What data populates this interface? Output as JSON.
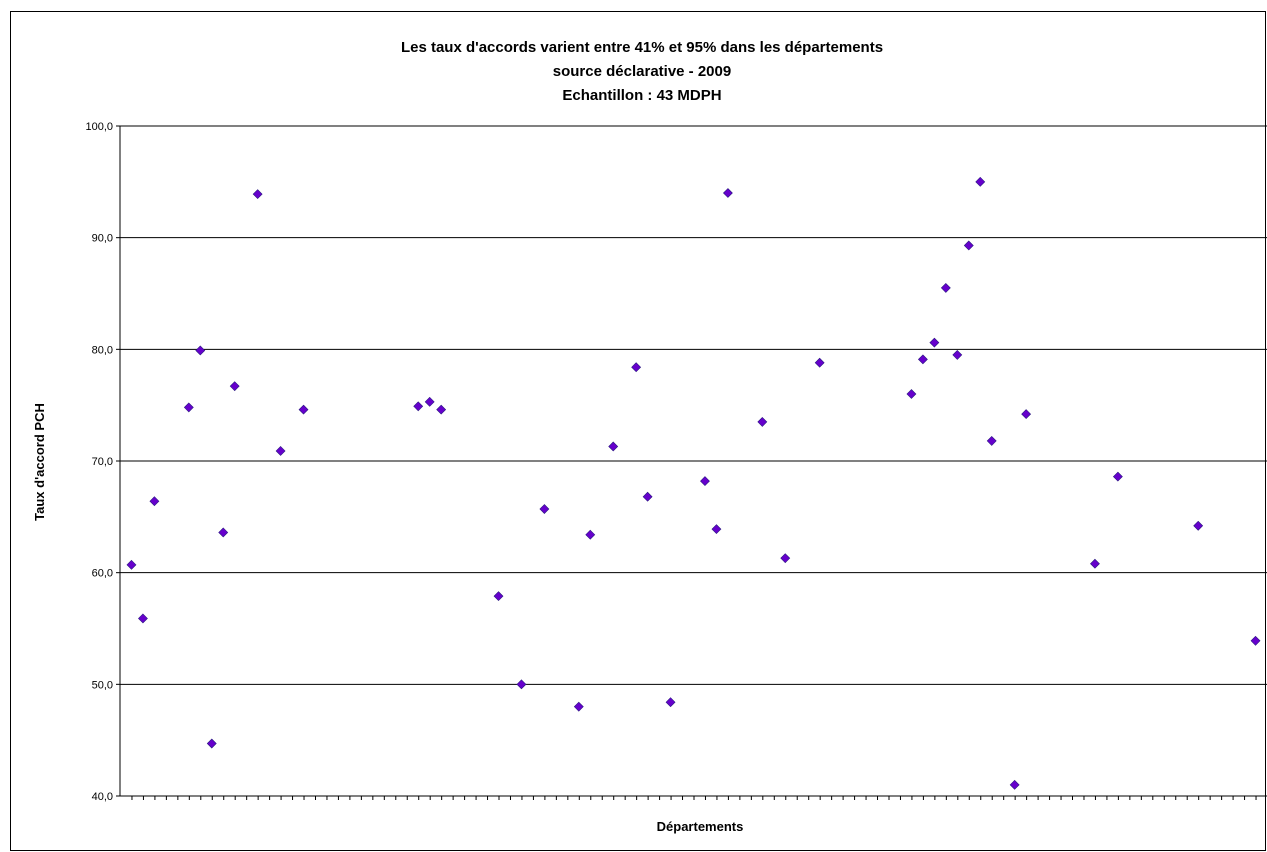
{
  "chart_data": {
    "type": "scatter",
    "title": [
      "Les taux d'accords varient entre 41% et 95% dans les départements",
      "source déclarative -  2009",
      "Echantillon : 43 MDPH"
    ],
    "xlabel": "Départements",
    "ylabel": "Taux d'accord PCH",
    "ylim": [
      40,
      100
    ],
    "xlim": [
      0,
      100
    ],
    "yticks": [
      "40,0",
      "50,0",
      "60,0",
      "70,0",
      "80,0",
      "90,0",
      "100,0"
    ],
    "grid": true,
    "marker_color": "#6600cc",
    "points": [
      {
        "x": 1,
        "y": 60.7
      },
      {
        "x": 2,
        "y": 55.9
      },
      {
        "x": 3,
        "y": 66.4
      },
      {
        "x": 6,
        "y": 74.8
      },
      {
        "x": 7,
        "y": 79.9
      },
      {
        "x": 8,
        "y": 44.7
      },
      {
        "x": 9,
        "y": 63.6
      },
      {
        "x": 10,
        "y": 76.7
      },
      {
        "x": 12,
        "y": 93.9
      },
      {
        "x": 14,
        "y": 70.9
      },
      {
        "x": 16,
        "y": 74.6
      },
      {
        "x": 26,
        "y": 74.9
      },
      {
        "x": 27,
        "y": 75.3
      },
      {
        "x": 28,
        "y": 74.6
      },
      {
        "x": 33,
        "y": 57.9
      },
      {
        "x": 35,
        "y": 50.0
      },
      {
        "x": 37,
        "y": 65.7
      },
      {
        "x": 40,
        "y": 48.0
      },
      {
        "x": 41,
        "y": 63.4
      },
      {
        "x": 43,
        "y": 71.3
      },
      {
        "x": 45,
        "y": 78.4
      },
      {
        "x": 46,
        "y": 66.8
      },
      {
        "x": 48,
        "y": 48.4
      },
      {
        "x": 51,
        "y": 68.2
      },
      {
        "x": 52,
        "y": 63.9
      },
      {
        "x": 53,
        "y": 94.0
      },
      {
        "x": 56,
        "y": 73.5
      },
      {
        "x": 58,
        "y": 61.3
      },
      {
        "x": 61,
        "y": 78.8
      },
      {
        "x": 69,
        "y": 76.0
      },
      {
        "x": 70,
        "y": 79.1
      },
      {
        "x": 71,
        "y": 80.6
      },
      {
        "x": 72,
        "y": 85.5
      },
      {
        "x": 73,
        "y": 79.5
      },
      {
        "x": 74,
        "y": 89.3
      },
      {
        "x": 75,
        "y": 95.0
      },
      {
        "x": 76,
        "y": 71.8
      },
      {
        "x": 78,
        "y": 41.0
      },
      {
        "x": 79,
        "y": 74.2
      },
      {
        "x": 85,
        "y": 60.8
      },
      {
        "x": 87,
        "y": 68.6
      },
      {
        "x": 94,
        "y": 64.2
      },
      {
        "x": 99,
        "y": 53.9
      }
    ]
  }
}
